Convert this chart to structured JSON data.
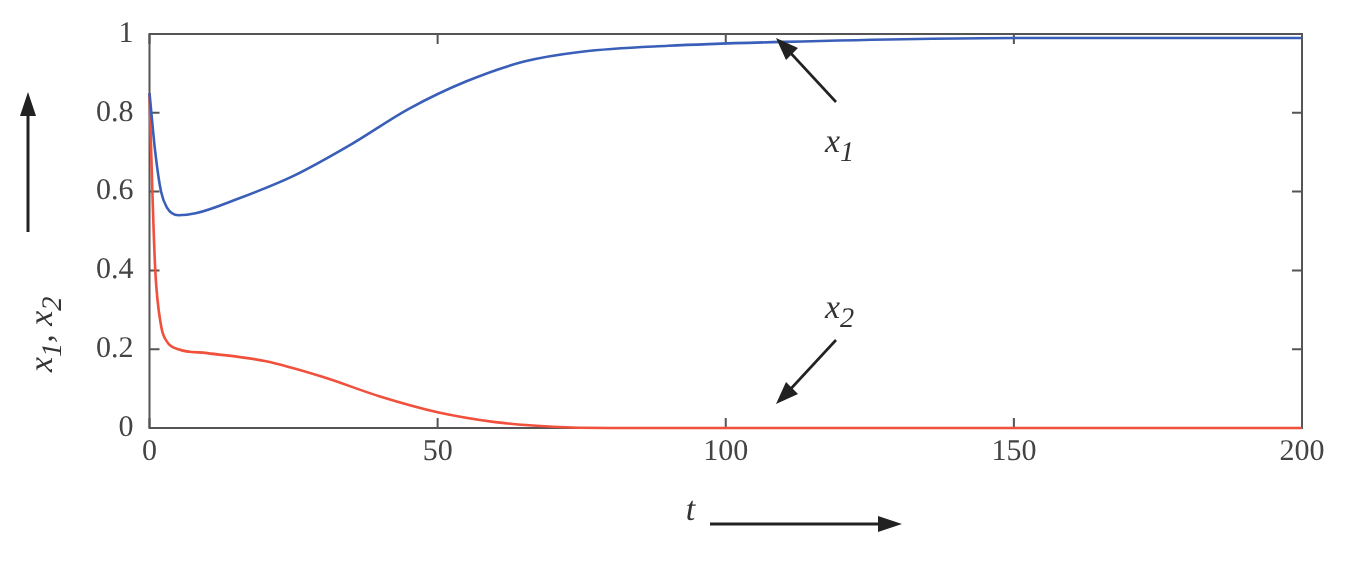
{
  "chart_data": {
    "type": "line",
    "xlabel": "t",
    "ylabel": "x$_{1}$, x$_{2}$",
    "xlim": [
      0,
      200
    ],
    "ylim": [
      0,
      1
    ],
    "xticks": [
      0,
      50,
      100,
      150,
      200
    ],
    "yticks": [
      0,
      0.2,
      0.4,
      0.6,
      0.8,
      1
    ],
    "grid": false,
    "legend": false,
    "marker": "none",
    "line_style": "solid",
    "series": [
      {
        "color": "#3a5fb8",
        "x": [
          0,
          1,
          2,
          3,
          5,
          8,
          15,
          25,
          35,
          45,
          55,
          65,
          75,
          90,
          110,
          150,
          200
        ],
        "values": [
          0.85,
          0.7,
          0.6,
          0.56,
          0.54,
          0.545,
          0.58,
          0.64,
          0.72,
          0.81,
          0.88,
          0.93,
          0.955,
          0.97,
          0.98,
          0.99,
          0.99
        ]
      },
      {
        "color": "#f0503c",
        "x": [
          0,
          0.5,
          1,
          2,
          3,
          5,
          10,
          20,
          30,
          40,
          50,
          60,
          70,
          80,
          200
        ],
        "values": [
          0.85,
          0.6,
          0.4,
          0.26,
          0.22,
          0.2,
          0.19,
          0.17,
          0.13,
          0.08,
          0.04,
          0.015,
          0.003,
          0,
          0
        ]
      }
    ],
    "annotations": [
      "x$_{1}$",
      "x$_{2}$"
    ]
  }
}
